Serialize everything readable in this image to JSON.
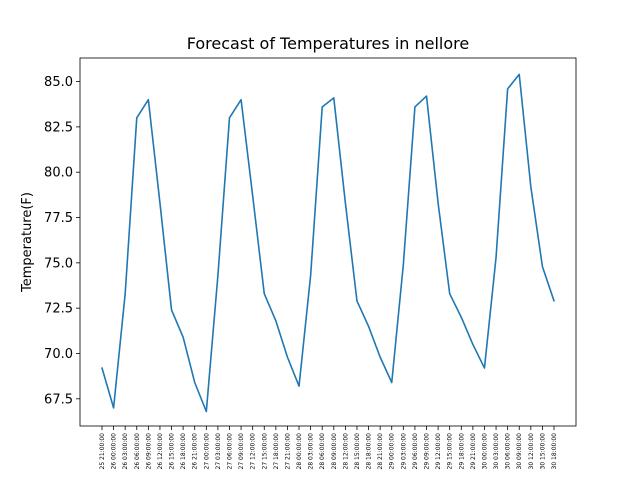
{
  "chart_data": {
    "type": "line",
    "title": "Forecast of Temperatures in nellore",
    "xlabel": "",
    "ylabel": "Temperature(F)",
    "ylim": [
      66.0,
      86.3
    ],
    "yticks": [
      67.5,
      70.0,
      72.5,
      75.0,
      77.5,
      80.0,
      82.5,
      85.0
    ],
    "ytick_labels": [
      "67.5",
      "70.0",
      "72.5",
      "75.0",
      "77.5",
      "80.0",
      "82.5",
      "85.0"
    ],
    "grid": false,
    "color": "#1f77b4",
    "categories": [
      "25 21:00:00",
      "26 00:00:00",
      "26 03:00:00",
      "26 06:00:00",
      "26 09:00:00",
      "26 12:00:00",
      "26 15:00:00",
      "26 18:00:00",
      "26 21:00:00",
      "27 00:00:00",
      "27 03:00:00",
      "27 06:00:00",
      "27 09:00:00",
      "27 12:00:00",
      "27 15:00:00",
      "27 18:00:00",
      "27 21:00:00",
      "28 00:00:00",
      "28 03:00:00",
      "28 06:00:00",
      "28 09:00:00",
      "28 12:00:00",
      "28 15:00:00",
      "28 18:00:00",
      "28 21:00:00",
      "29 00:00:00",
      "29 03:00:00",
      "29 06:00:00",
      "29 09:00:00",
      "29 12:00:00",
      "29 15:00:00",
      "29 18:00:00",
      "29 21:00:00",
      "30 00:00:00",
      "30 03:00:00",
      "30 06:00:00",
      "30 09:00:00",
      "30 12:00:00",
      "30 15:00:00",
      "30 18:00:00"
    ],
    "values": [
      69.2,
      67.0,
      73.3,
      83.0,
      84.0,
      78.3,
      72.4,
      70.9,
      68.4,
      66.8,
      74.3,
      83.0,
      84.0,
      78.7,
      73.3,
      71.8,
      69.8,
      68.2,
      74.3,
      83.6,
      84.1,
      78.3,
      72.9,
      71.5,
      69.8,
      68.4,
      74.9,
      83.6,
      84.2,
      78.3,
      73.3,
      72.0,
      70.5,
      69.2,
      75.3,
      84.6,
      85.4,
      79.2,
      74.8,
      72.9
    ]
  }
}
